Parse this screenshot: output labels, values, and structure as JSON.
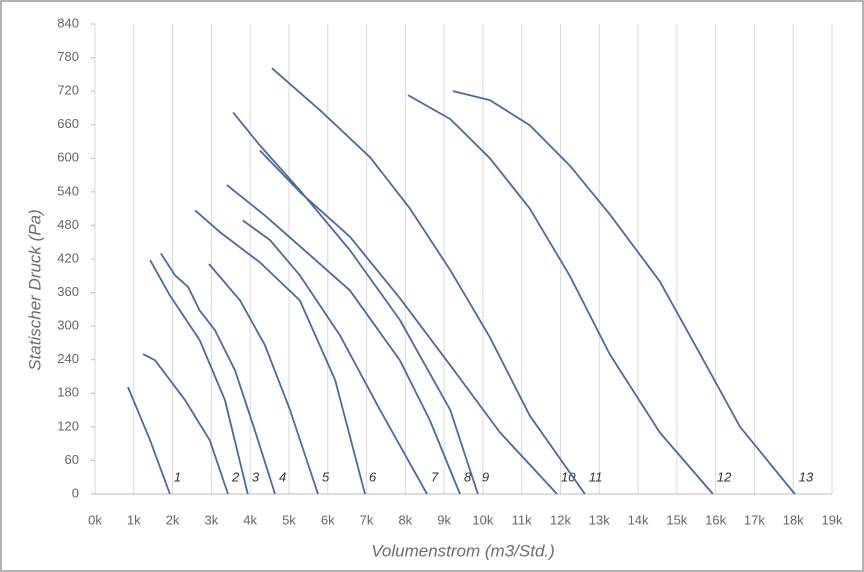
{
  "chart_data": {
    "type": "line",
    "x_label": "Volumenstrom (m3/Std.)",
    "y_label": "Statischer Druck (Pa)",
    "xlim": [
      0,
      19000
    ],
    "xticks": [
      {
        "value": 0,
        "label": "0k"
      },
      {
        "value": 1000,
        "label": "1k"
      },
      {
        "value": 2000,
        "label": "2k"
      },
      {
        "value": 3000,
        "label": "3k"
      },
      {
        "value": 4000,
        "label": "4k"
      },
      {
        "value": 5000,
        "label": "5k"
      },
      {
        "value": 6000,
        "label": "6k"
      },
      {
        "value": 7000,
        "label": "7k"
      },
      {
        "value": 8000,
        "label": "8k"
      },
      {
        "value": 9000,
        "label": "9k"
      },
      {
        "value": 10000,
        "label": "10k"
      },
      {
        "value": 11000,
        "label": "11k"
      },
      {
        "value": 12000,
        "label": "12k"
      },
      {
        "value": 13000,
        "label": "13k"
      },
      {
        "value": 14000,
        "label": "14k"
      },
      {
        "value": 15000,
        "label": "15k"
      },
      {
        "value": 16000,
        "label": "16k"
      },
      {
        "value": 17000,
        "label": "17k"
      },
      {
        "value": 18000,
        "label": "18k"
      },
      {
        "value": 19000,
        "label": "19k"
      }
    ],
    "ylim": [
      0,
      840
    ],
    "yticks": [
      0,
      60,
      120,
      180,
      240,
      300,
      360,
      420,
      480,
      540,
      600,
      660,
      720,
      780,
      840
    ],
    "grid": true,
    "series": [
      {
        "name": "1",
        "color": "#4a6aa5",
        "x": [
          850,
          1420,
          1930
        ],
        "values": [
          191,
          96,
          0
        ]
      },
      {
        "name": "2",
        "color": "#4a6aa5",
        "x": [
          1240,
          1550,
          2320,
          2960,
          3430
        ],
        "values": [
          250,
          239,
          168,
          96,
          0
        ]
      },
      {
        "name": "3",
        "color": "#4a6aa5",
        "x": [
          1420,
          1930,
          2700,
          3350,
          3940
        ],
        "values": [
          418,
          355,
          275,
          168,
          0
        ]
      },
      {
        "name": "4",
        "color": "#4a6aa5",
        "x": [
          1700,
          2060,
          2400,
          2700,
          3090,
          3610,
          4120,
          4640
        ],
        "values": [
          430,
          391,
          370,
          328,
          293,
          221,
          114,
          0
        ]
      },
      {
        "name": "5",
        "color": "#4a6aa5",
        "x": [
          2940,
          3740,
          4380,
          5030,
          5750
        ],
        "values": [
          411,
          346,
          266,
          150,
          0
        ]
      },
      {
        "name": "6",
        "color": "#4a6aa5",
        "x": [
          2580,
          3220,
          4250,
          5280,
          6190,
          6960
        ],
        "values": [
          507,
          468,
          414,
          346,
          204,
          0
        ]
      },
      {
        "name": "7",
        "color": "#4a6aa5",
        "x": [
          3810,
          4510,
          5280,
          6310,
          7350,
          8560
        ],
        "values": [
          489,
          454,
          391,
          284,
          150,
          0
        ]
      },
      {
        "name": "8",
        "color": "#4a6aa5",
        "x": [
          3400,
          4380,
          5540,
          6570,
          7860,
          8630,
          9410
        ],
        "values": [
          552,
          498,
          427,
          364,
          239,
          132,
          0
        ]
      },
      {
        "name": "9",
        "color": "#4a6aa5",
        "x": [
          3560,
          4250,
          5280,
          6570,
          7860,
          9160,
          9870
        ],
        "values": [
          682,
          623,
          543,
          436,
          311,
          150,
          0
        ]
      },
      {
        "name": "10",
        "color": "#4a6aa5",
        "x": [
          4250,
          5280,
          6570,
          7860,
          9160,
          10440,
          11910
        ],
        "values": [
          614,
          540,
          460,
          350,
          230,
          110,
          0
        ]
      },
      {
        "name": "11",
        "color": "#4a6aa5",
        "x": [
          4560,
          5800,
          7090,
          8120,
          9160,
          10180,
          11210,
          12630
        ],
        "values": [
          761,
          686,
          602,
          510,
          400,
          280,
          140,
          0
        ]
      },
      {
        "name": "12",
        "color": "#4a6aa5",
        "x": [
          8070,
          9160,
          10180,
          11210,
          12240,
          13270,
          14560,
          15930
        ],
        "values": [
          713,
          670,
          600,
          510,
          390,
          250,
          110,
          0
        ]
      },
      {
        "name": "13",
        "color": "#4a6aa5",
        "x": [
          9230,
          10180,
          11210,
          12240,
          13270,
          14560,
          15600,
          16630,
          18040
        ],
        "values": [
          720,
          704,
          659,
          587,
          500,
          380,
          250,
          120,
          0
        ]
      }
    ]
  }
}
